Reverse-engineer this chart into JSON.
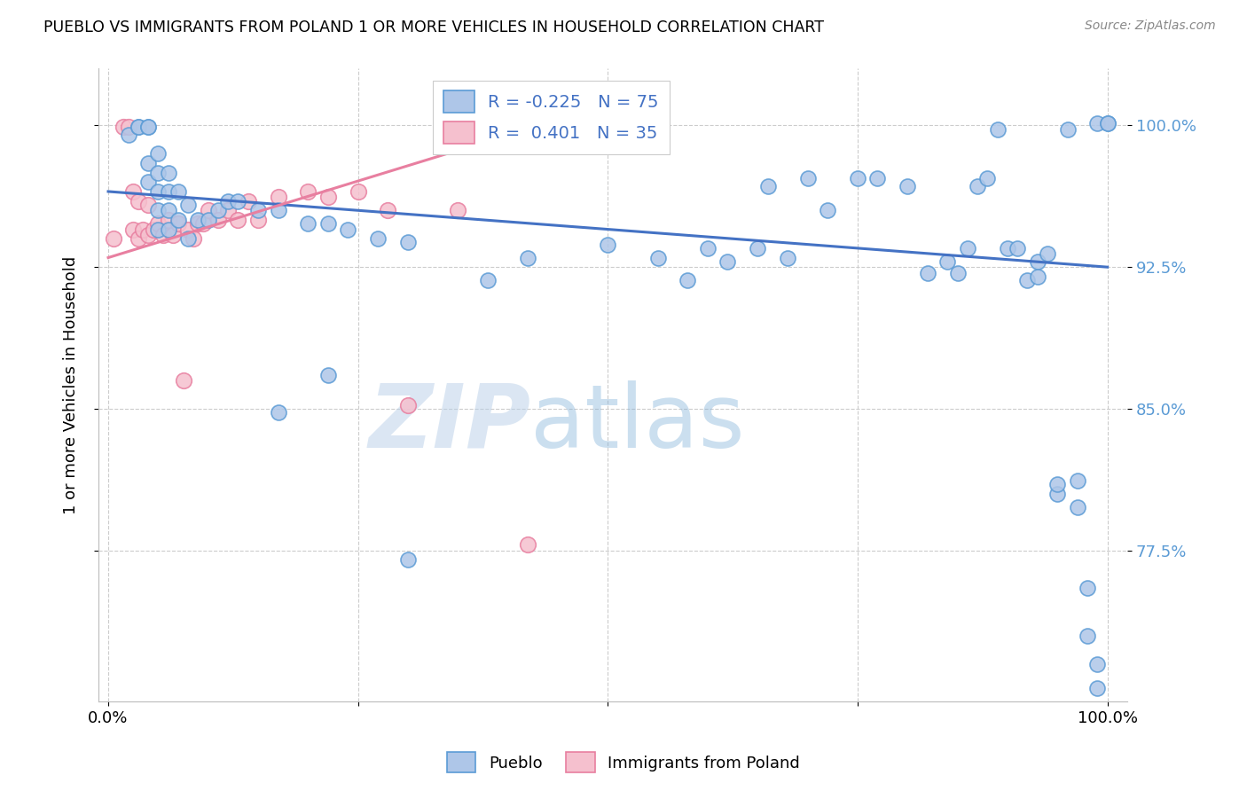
{
  "title": "PUEBLO VS IMMIGRANTS FROM POLAND 1 OR MORE VEHICLES IN HOUSEHOLD CORRELATION CHART",
  "source": "Source: ZipAtlas.com",
  "ylabel": "1 or more Vehicles in Household",
  "ytick_labels": [
    "77.5%",
    "85.0%",
    "92.5%",
    "100.0%"
  ],
  "ytick_values": [
    0.775,
    0.85,
    0.925,
    1.0
  ],
  "xlim": [
    -0.01,
    1.02
  ],
  "ylim": [
    0.695,
    1.03
  ],
  "legend_blue_label": "R = -0.225   N = 75",
  "legend_pink_label": "R =  0.401   N = 35",
  "blue_fill": "#aec6e8",
  "blue_edge": "#5b9bd5",
  "pink_fill": "#f5c0ce",
  "pink_edge": "#e87fa0",
  "blue_line_color": "#4472c4",
  "pink_line_color": "#e87fa0",
  "watermark_zip": "ZIP",
  "watermark_atlas": "atlas",
  "grid_color": "#cccccc",
  "pueblo_x": [
    0.02,
    0.03,
    0.03,
    0.04,
    0.04,
    0.04,
    0.04,
    0.05,
    0.05,
    0.05,
    0.05,
    0.05,
    0.06,
    0.06,
    0.06,
    0.06,
    0.07,
    0.07,
    0.08,
    0.08,
    0.09,
    0.1,
    0.11,
    0.12,
    0.13,
    0.15,
    0.17,
    0.2,
    0.22,
    0.24,
    0.27,
    0.3,
    0.38,
    0.42,
    0.5,
    0.55,
    0.58,
    0.6,
    0.62,
    0.65,
    0.66,
    0.68,
    0.7,
    0.72,
    0.75,
    0.77,
    0.8,
    0.82,
    0.84,
    0.85,
    0.86,
    0.87,
    0.88,
    0.89,
    0.9,
    0.91,
    0.92,
    0.93,
    0.93,
    0.94,
    0.95,
    0.95,
    0.96,
    0.97,
    0.97,
    0.98,
    0.98,
    0.99,
    0.99,
    0.99,
    1.0,
    1.0,
    0.17,
    0.22,
    0.3
  ],
  "pueblo_y": [
    0.995,
    0.999,
    0.999,
    0.97,
    0.98,
    0.999,
    0.999,
    0.945,
    0.955,
    0.965,
    0.975,
    0.985,
    0.945,
    0.955,
    0.965,
    0.975,
    0.95,
    0.965,
    0.958,
    0.94,
    0.95,
    0.95,
    0.955,
    0.96,
    0.96,
    0.955,
    0.955,
    0.948,
    0.948,
    0.945,
    0.94,
    0.938,
    0.918,
    0.93,
    0.937,
    0.93,
    0.918,
    0.935,
    0.928,
    0.935,
    0.968,
    0.93,
    0.972,
    0.955,
    0.972,
    0.972,
    0.968,
    0.922,
    0.928,
    0.922,
    0.935,
    0.968,
    0.972,
    0.998,
    0.935,
    0.935,
    0.918,
    0.928,
    0.92,
    0.932,
    0.805,
    0.81,
    0.998,
    0.798,
    0.812,
    0.755,
    0.73,
    0.715,
    0.702,
    1.001,
    1.001,
    1.001,
    0.848,
    0.868,
    0.77
  ],
  "poland_x": [
    0.005,
    0.015,
    0.02,
    0.025,
    0.025,
    0.03,
    0.03,
    0.035,
    0.04,
    0.04,
    0.045,
    0.05,
    0.055,
    0.06,
    0.065,
    0.07,
    0.075,
    0.08,
    0.085,
    0.09,
    0.095,
    0.1,
    0.11,
    0.12,
    0.13,
    0.14,
    0.15,
    0.17,
    0.2,
    0.22,
    0.25,
    0.28,
    0.3,
    0.35,
    0.42
  ],
  "poland_y": [
    0.94,
    0.999,
    0.999,
    0.945,
    0.965,
    0.94,
    0.96,
    0.945,
    0.942,
    0.958,
    0.945,
    0.948,
    0.942,
    0.95,
    0.942,
    0.948,
    0.865,
    0.945,
    0.94,
    0.948,
    0.948,
    0.955,
    0.95,
    0.955,
    0.95,
    0.96,
    0.95,
    0.962,
    0.965,
    0.962,
    0.965,
    0.955,
    0.852,
    0.955,
    0.778
  ]
}
